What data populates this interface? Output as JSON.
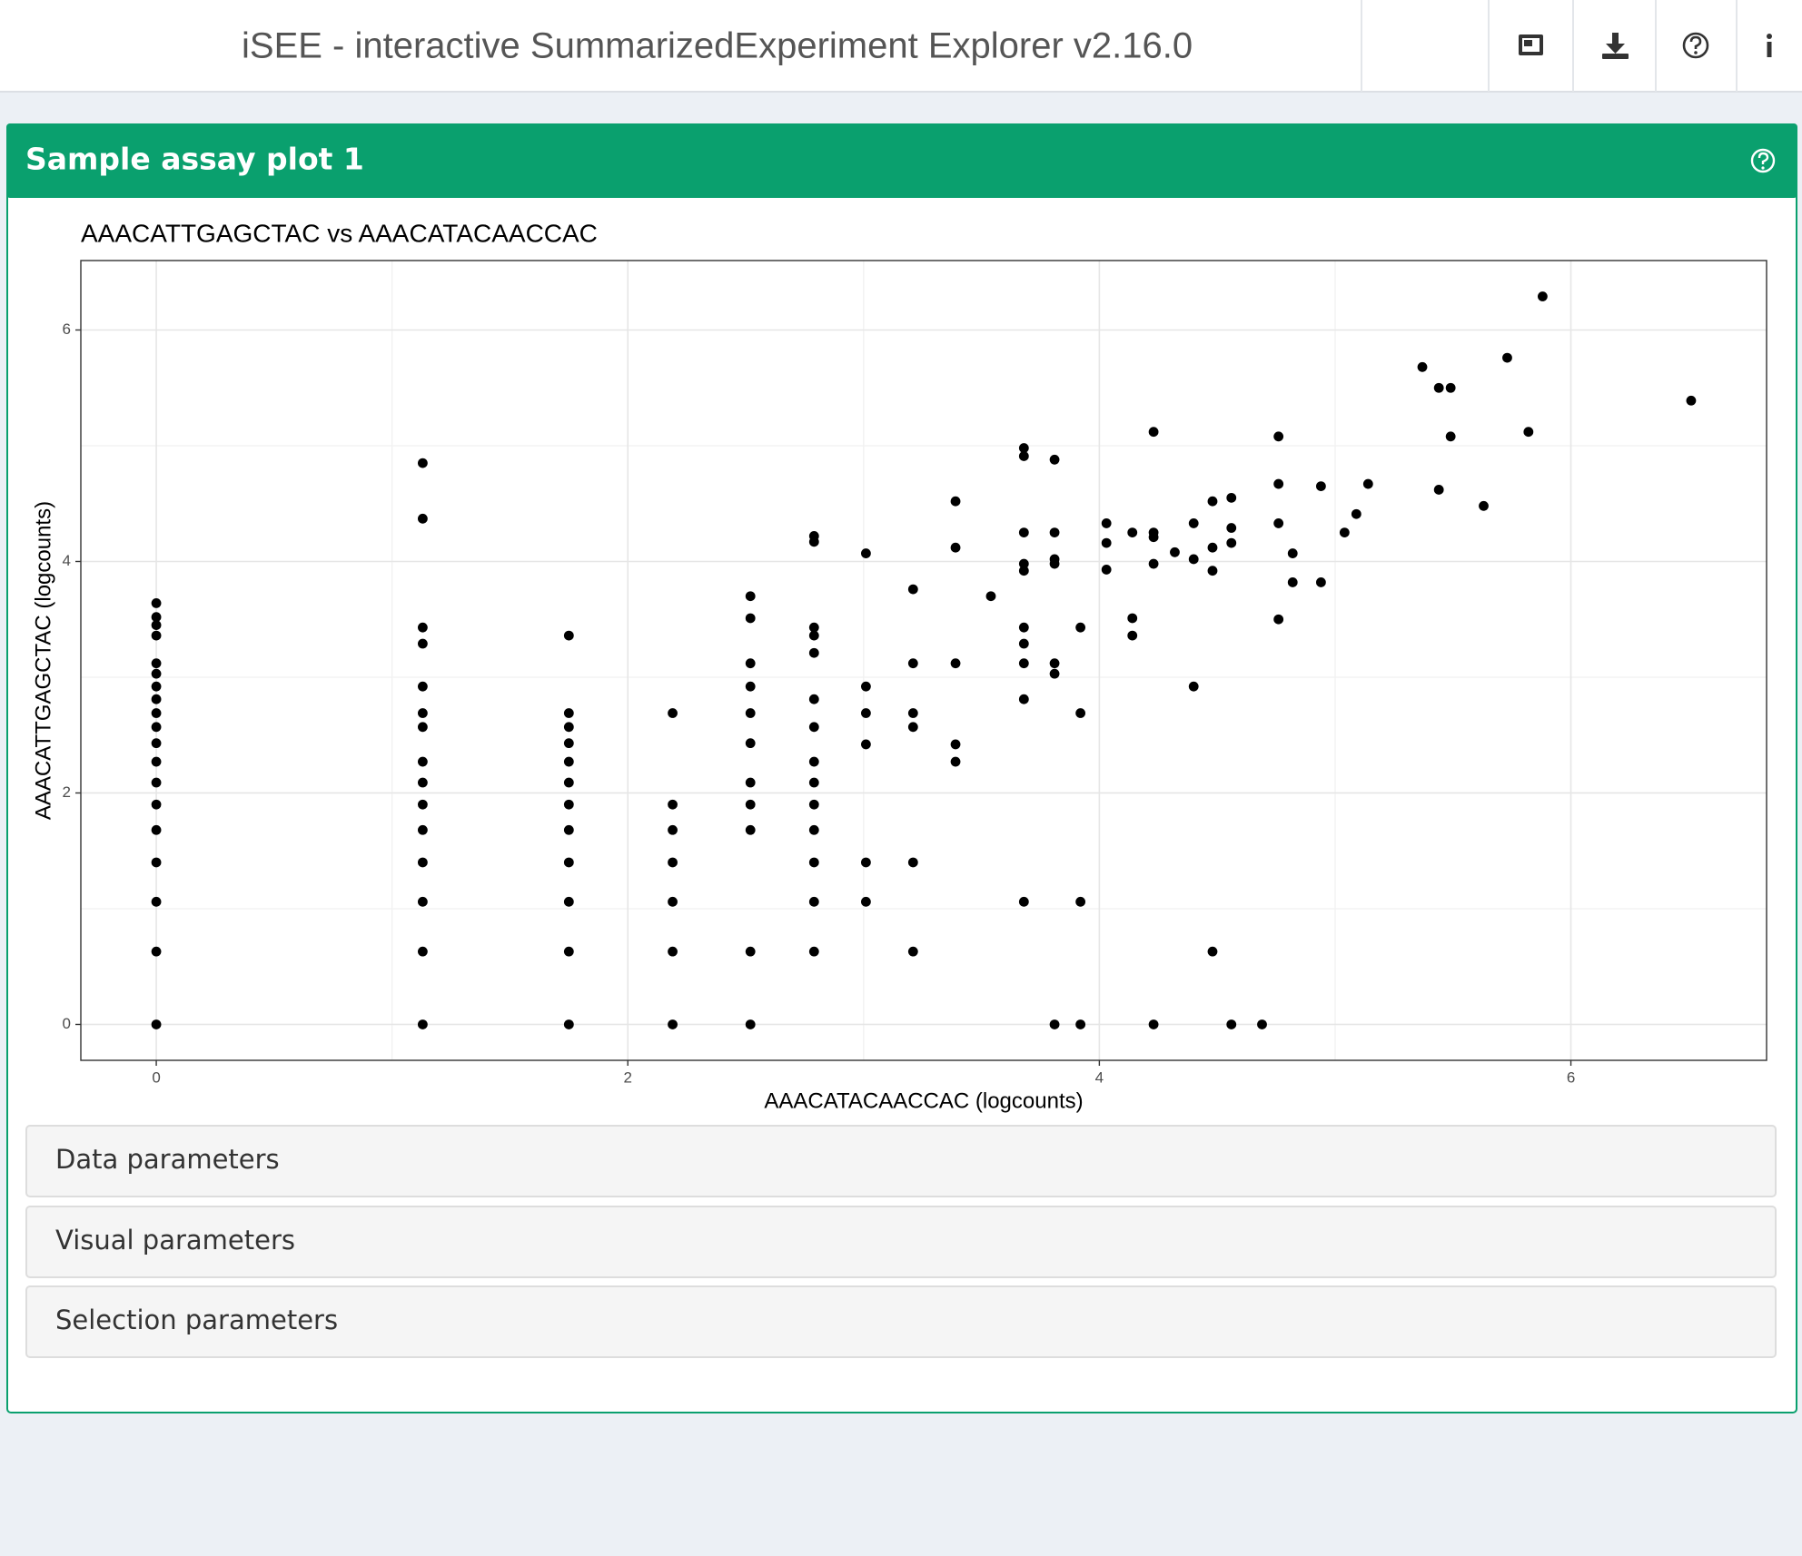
{
  "header": {
    "title": "iSEE - interactive SummarizedExperiment Explorer v2.16.0"
  },
  "box": {
    "title": "Sample assay plot 1"
  },
  "chart_data": {
    "type": "scatter",
    "title": "AAACATTGAGCTAC vs AAACATACAACCAC",
    "x_label": "AAACATACAACCAC (logcounts)",
    "y_label": "AAACATTGAGCTAC (logcounts)",
    "color": "#000000",
    "grid": true,
    "xlim": [
      -0.32,
      6.83
    ],
    "ylim": [
      -0.31,
      6.6
    ],
    "xticks": [
      0,
      2,
      4,
      6
    ],
    "yticks": [
      0,
      2,
      4,
      6
    ],
    "x": [
      0,
      0,
      0,
      0,
      0,
      0,
      0,
      0,
      0,
      0,
      0,
      0,
      0,
      0,
      0,
      0,
      0,
      0,
      0,
      1.13,
      1.13,
      1.13,
      1.13,
      1.13,
      1.13,
      1.13,
      1.13,
      1.13,
      1.13,
      1.13,
      1.13,
      1.13,
      1.13,
      1.13,
      1.75,
      1.75,
      1.75,
      1.75,
      1.75,
      1.75,
      1.75,
      1.75,
      1.75,
      1.75,
      1.75,
      1.75,
      2.19,
      2.19,
      2.19,
      2.19,
      2.19,
      2.19,
      2.19,
      2.52,
      2.52,
      2.52,
      2.52,
      2.52,
      2.52,
      2.52,
      2.52,
      2.52,
      2.52,
      2.52,
      2.79,
      2.79,
      2.79,
      2.79,
      2.79,
      2.79,
      2.79,
      2.79,
      2.79,
      2.79,
      2.79,
      2.79,
      2.79,
      2.79,
      3.01,
      3.01,
      3.01,
      3.01,
      3.01,
      3.01,
      3.21,
      3.21,
      3.21,
      3.21,
      3.21,
      3.21,
      3.39,
      3.39,
      3.39,
      3.39,
      3.39,
      3.54,
      3.68,
      3.68,
      3.68,
      3.68,
      3.68,
      3.68,
      3.68,
      3.68,
      3.68,
      3.68,
      3.81,
      3.81,
      3.81,
      3.81,
      3.81,
      3.81,
      3.81,
      3.92,
      3.92,
      3.92,
      3.92,
      4.03,
      4.03,
      4.03,
      4.14,
      4.14,
      4.14,
      4.23,
      4.23,
      4.23,
      4.23,
      4.23,
      4.32,
      4.4,
      4.4,
      4.4,
      4.48,
      4.48,
      4.48,
      4.48,
      4.56,
      4.56,
      4.56,
      4.56,
      4.69,
      4.76,
      4.76,
      4.76,
      4.76,
      4.82,
      4.82,
      4.94,
      4.94,
      5.04,
      5.09,
      5.14,
      5.37,
      5.44,
      5.44,
      5.49,
      5.49,
      5.63,
      5.73,
      5.82,
      5.88,
      6.51
    ],
    "values": [
      3.64,
      3.52,
      3.45,
      3.36,
      3.12,
      3.03,
      2.92,
      2.81,
      2.69,
      2.57,
      2.43,
      2.27,
      2.09,
      1.9,
      1.68,
      1.4,
      1.06,
      0.63,
      0,
      4.85,
      4.37,
      3.43,
      3.29,
      2.92,
      2.69,
      2.57,
      2.27,
      2.09,
      1.9,
      1.68,
      1.4,
      1.06,
      0.63,
      0,
      3.36,
      2.69,
      2.57,
      2.43,
      2.27,
      2.09,
      1.9,
      1.68,
      1.4,
      1.06,
      0.63,
      0,
      2.69,
      1.9,
      1.68,
      1.4,
      1.06,
      0.63,
      0,
      3.7,
      3.51,
      3.12,
      2.92,
      2.69,
      2.43,
      2.09,
      1.9,
      1.68,
      0.63,
      0,
      4.22,
      4.17,
      3.43,
      3.36,
      3.21,
      2.81,
      2.57,
      2.27,
      2.09,
      1.9,
      1.68,
      1.4,
      1.06,
      0.63,
      4.07,
      2.92,
      2.69,
      2.42,
      1.4,
      1.06,
      3.76,
      3.12,
      2.69,
      2.57,
      1.4,
      0.63,
      4.52,
      4.12,
      3.12,
      2.42,
      2.27,
      3.7,
      4.98,
      4.91,
      4.25,
      3.98,
      3.92,
      3.43,
      3.29,
      3.12,
      2.81,
      1.06,
      4.88,
      4.25,
      4.02,
      3.98,
      3.12,
      3.03,
      0,
      3.43,
      2.69,
      1.06,
      0,
      4.33,
      4.16,
      3.93,
      4.25,
      3.51,
      3.36,
      5.12,
      4.25,
      4.21,
      3.98,
      0,
      4.08,
      4.33,
      4.02,
      2.92,
      4.52,
      4.12,
      3.92,
      0.63,
      4.55,
      4.29,
      4.16,
      0,
      0,
      5.08,
      4.67,
      4.33,
      3.5,
      4.07,
      3.82,
      4.65,
      3.82,
      4.25,
      4.41,
      4.67,
      5.68,
      5.5,
      4.62,
      5.5,
      5.08,
      4.48,
      5.76,
      5.12,
      6.29,
      5.39
    ]
  },
  "sections": [
    "Data parameters",
    "Visual parameters",
    "Selection parameters"
  ]
}
